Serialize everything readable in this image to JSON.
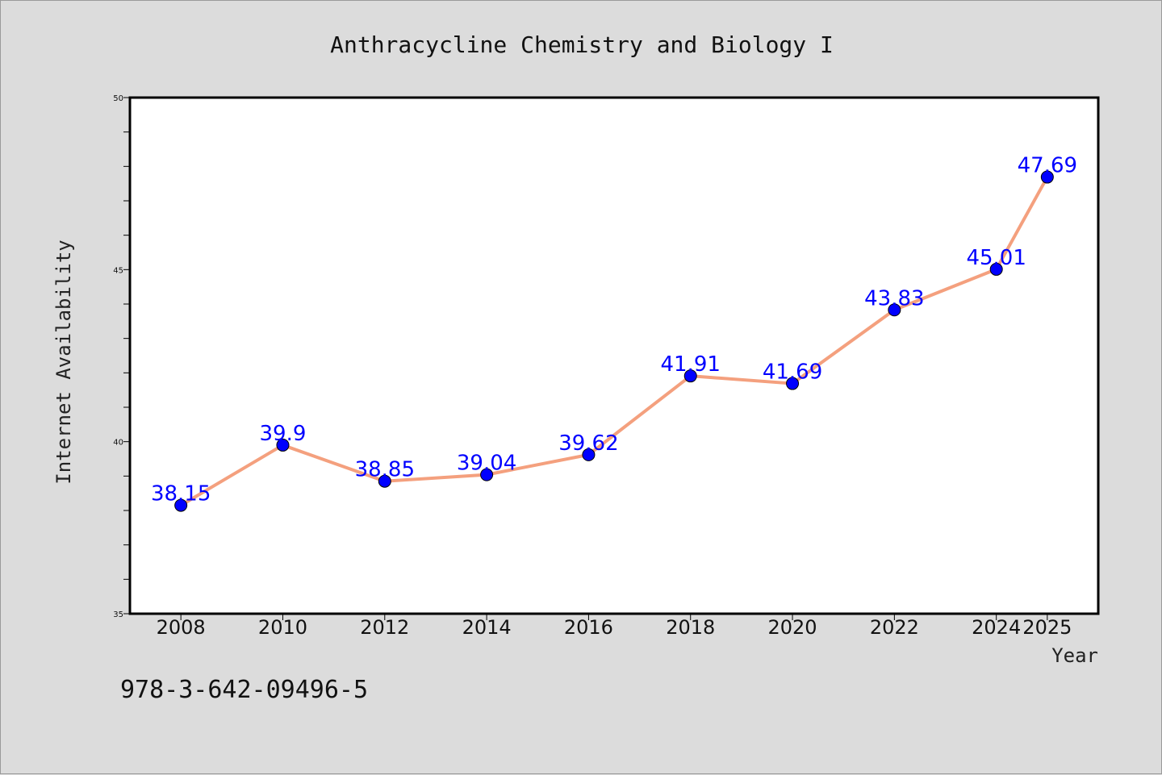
{
  "chart_data": {
    "type": "line",
    "title": "Anthracycline Chemistry and Biology I",
    "xlabel": "Year",
    "ylabel": "Internet Availability",
    "x": [
      "2008",
      "2010",
      "2012",
      "2014",
      "2016",
      "2018",
      "2020",
      "2022",
      "2024",
      "2025"
    ],
    "series": [
      {
        "values": [
          38.15,
          39.9,
          38.85,
          39.04,
          39.62,
          41.91,
          41.69,
          43.83,
          45.01,
          47.69
        ],
        "data_labels": [
          "38.15",
          "39.9",
          "38.85",
          "39.04",
          "39.62",
          "41.91",
          "41.69",
          "43.83",
          "45.01",
          "47.69"
        ],
        "line_color": "#f4a07e",
        "marker_color": "#0000ff"
      }
    ],
    "ylim": [
      35,
      50
    ],
    "yticks": [
      "35",
      "40",
      "45",
      "50"
    ],
    "grid": false,
    "legend": "none"
  },
  "footer": {
    "isbn": "978-3-642-09496-5"
  }
}
